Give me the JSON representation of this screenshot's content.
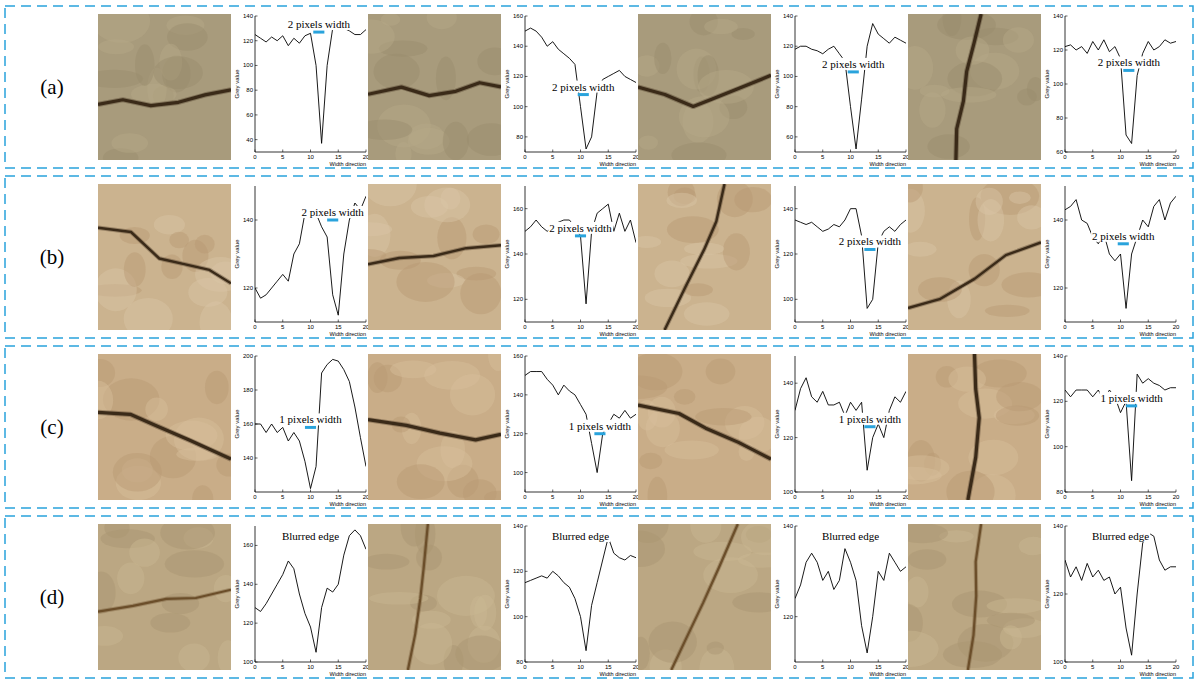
{
  "row_labels": [
    "(a)",
    "(b)",
    "(c)",
    "(d)"
  ],
  "chart_data": [
    {
      "type": "line",
      "x": [
        0,
        1,
        2,
        3,
        4,
        5,
        6,
        7,
        8,
        9,
        10,
        11,
        12,
        13,
        14,
        15,
        16,
        17,
        18,
        19,
        20
      ],
      "values": [
        125,
        122,
        119,
        123,
        120,
        124,
        116,
        122,
        118,
        124,
        126,
        100,
        37,
        100,
        130,
        133,
        130,
        128,
        125,
        125,
        129
      ],
      "xlim": [
        0,
        20
      ],
      "ylim": [
        30,
        140
      ],
      "xticks": [
        0,
        5,
        10,
        15,
        20
      ],
      "yticks": [
        40,
        60,
        80,
        100,
        120,
        140
      ],
      "x_label": "Width direction",
      "y_label": "Grey value",
      "color": "#000000",
      "annotation": {
        "text": "2 pixels width",
        "x0": 10.5,
        "x1": 12.5,
        "y": 127
      }
    },
    {
      "type": "line",
      "x": [
        0,
        1,
        2,
        3,
        4,
        5,
        6,
        7,
        8,
        9,
        10,
        11,
        12,
        13,
        14,
        15,
        16,
        17,
        18,
        19,
        20
      ],
      "values": [
        150,
        152,
        150,
        146,
        140,
        143,
        138,
        135,
        132,
        128,
        100,
        72,
        80,
        110,
        118,
        120,
        122,
        124,
        120,
        118,
        116
      ],
      "xlim": [
        0,
        20
      ],
      "ylim": [
        70,
        160
      ],
      "xticks": [
        0,
        5,
        10,
        15,
        20
      ],
      "yticks": [
        80,
        100,
        120,
        140,
        160
      ],
      "x_label": "Width direction",
      "y_label": "Grey value",
      "color": "#000000",
      "annotation": {
        "text": "2 pixels width",
        "x0": 9.5,
        "x1": 11.5,
        "y": 108
      }
    },
    {
      "type": "line",
      "x": [
        0,
        1,
        2,
        3,
        4,
        5,
        6,
        7,
        8,
        9,
        10,
        11,
        12,
        13,
        14,
        15,
        16,
        17,
        18,
        19,
        20
      ],
      "values": [
        118,
        120,
        120,
        118,
        117,
        115,
        118,
        120,
        115,
        110,
        80,
        52,
        85,
        120,
        135,
        128,
        125,
        122,
        126,
        124,
        122
      ],
      "xlim": [
        0,
        20
      ],
      "ylim": [
        50,
        140
      ],
      "xticks": [
        0,
        5,
        10,
        15,
        20
      ],
      "yticks": [
        60,
        80,
        100,
        120,
        140
      ],
      "x_label": "Width direction",
      "y_label": "Grey value",
      "color": "#000000",
      "annotation": {
        "text": "2 pixels width",
        "x0": 9.5,
        "x1": 11.5,
        "y": 103
      }
    },
    {
      "type": "line",
      "x": [
        0,
        1,
        2,
        3,
        4,
        5,
        6,
        7,
        8,
        9,
        10,
        11,
        12,
        13,
        14,
        15,
        16,
        17,
        18,
        19,
        20
      ],
      "values": [
        122,
        123,
        120,
        122,
        118,
        125,
        120,
        126,
        119,
        122,
        115,
        70,
        65,
        105,
        118,
        125,
        120,
        122,
        126,
        124,
        125
      ],
      "xlim": [
        0,
        20
      ],
      "ylim": [
        60,
        140
      ],
      "xticks": [
        0,
        5,
        10,
        15,
        20
      ],
      "yticks": [
        60,
        80,
        100,
        120,
        140
      ],
      "x_label": "Width direction",
      "y_label": "Grey value",
      "color": "#000000",
      "annotation": {
        "text": "2 pixels width",
        "x0": 10.5,
        "x1": 12.5,
        "y": 108
      }
    },
    {
      "type": "line",
      "x": [
        0,
        1,
        2,
        3,
        4,
        5,
        6,
        7,
        8,
        9,
        10,
        11,
        12,
        13,
        14,
        15,
        16,
        17,
        18,
        19,
        20
      ],
      "values": [
        120,
        117,
        118,
        120,
        122,
        124,
        122,
        130,
        133,
        142,
        143,
        142,
        138,
        135,
        118,
        112,
        130,
        140,
        145,
        143,
        147
      ],
      "xlim": [
        0,
        20
      ],
      "ylim": [
        110,
        150
      ],
      "xticks": [
        0,
        5,
        10,
        15,
        20
      ],
      "yticks": [
        120,
        140
      ],
      "x_label": "Width direction",
      "y_label": "Grey value",
      "color": "#000000",
      "annotation": {
        "text": "2 pixels width",
        "x0": 13,
        "x1": 15,
        "y": 140
      }
    },
    {
      "type": "line",
      "x": [
        0,
        1,
        2,
        3,
        4,
        5,
        6,
        7,
        8,
        9,
        10,
        11,
        12,
        13,
        14,
        15,
        16,
        17,
        18,
        19,
        20
      ],
      "values": [
        150,
        152,
        155,
        152,
        150,
        152,
        154,
        155,
        155,
        152,
        148,
        118,
        150,
        158,
        160,
        162,
        150,
        158,
        150,
        155,
        145
      ],
      "xlim": [
        0,
        20
      ],
      "ylim": [
        110,
        170
      ],
      "xticks": [
        0,
        5,
        10,
        15,
        20
      ],
      "yticks": [
        120,
        140,
        160
      ],
      "x_label": "Width direction",
      "y_label": "Grey value",
      "color": "#000000",
      "annotation": {
        "text": "2 pixels width",
        "x0": 9,
        "x1": 11,
        "y": 148
      }
    },
    {
      "type": "line",
      "x": [
        0,
        1,
        2,
        3,
        4,
        5,
        6,
        7,
        8,
        9,
        10,
        11,
        12,
        13,
        14,
        15,
        16,
        17,
        18,
        19,
        20
      ],
      "values": [
        135,
        134,
        133,
        134,
        132,
        130,
        131,
        133,
        132,
        135,
        140,
        140,
        128,
        96,
        100,
        125,
        130,
        132,
        130,
        133,
        135
      ],
      "xlim": [
        0,
        20
      ],
      "ylim": [
        90,
        150
      ],
      "xticks": [
        0,
        5,
        10,
        15,
        20
      ],
      "yticks": [
        100,
        120,
        140
      ],
      "x_label": "Width direction",
      "y_label": "Grey value",
      "color": "#000000",
      "annotation": {
        "text": "2 pixels width",
        "x0": 12.5,
        "x1": 14.5,
        "y": 122
      }
    },
    {
      "type": "line",
      "x": [
        0,
        1,
        2,
        3,
        4,
        5,
        6,
        7,
        8,
        9,
        10,
        11,
        12,
        13,
        14,
        15,
        16,
        17,
        18,
        19,
        20
      ],
      "values": [
        143,
        144,
        146,
        140,
        139,
        135,
        133,
        136,
        130,
        128,
        130,
        114,
        130,
        135,
        140,
        138,
        144,
        146,
        140,
        145,
        147
      ],
      "xlim": [
        0,
        20
      ],
      "ylim": [
        110,
        150
      ],
      "xticks": [
        0,
        5,
        10,
        15,
        20
      ],
      "yticks": [
        120,
        140
      ],
      "x_label": "Width direction",
      "y_label": "Grey value",
      "color": "#000000",
      "annotation": {
        "text": "2 pixels width",
        "x0": 9.5,
        "x1": 11.5,
        "y": 133
      }
    },
    {
      "type": "line",
      "x": [
        0,
        1,
        2,
        3,
        4,
        5,
        6,
        7,
        8,
        9,
        10,
        11,
        12,
        13,
        14,
        15,
        16,
        17,
        18,
        19,
        20
      ],
      "values": [
        160,
        160,
        155,
        160,
        155,
        158,
        150,
        155,
        150,
        138,
        122,
        135,
        190,
        195,
        198,
        197,
        192,
        185,
        170,
        152,
        135
      ],
      "xlim": [
        0,
        20
      ],
      "ylim": [
        120,
        200
      ],
      "xticks": [
        0,
        5,
        10,
        15,
        20
      ],
      "yticks": [
        140,
        160,
        180,
        200
      ],
      "x_label": "Width direction",
      "y_label": "Grey value",
      "color": "#000000",
      "annotation": {
        "text": "1 pixels width",
        "x0": 9,
        "x1": 11,
        "y": 158
      }
    },
    {
      "type": "line",
      "x": [
        0,
        1,
        2,
        3,
        4,
        5,
        6,
        7,
        8,
        9,
        10,
        11,
        12,
        13,
        14,
        15,
        16,
        17,
        18,
        19,
        20
      ],
      "values": [
        150,
        152,
        152,
        152,
        148,
        145,
        140,
        145,
        142,
        140,
        135,
        130,
        115,
        100,
        120,
        125,
        130,
        128,
        132,
        128,
        130
      ],
      "xlim": [
        0,
        20
      ],
      "ylim": [
        90,
        160
      ],
      "xticks": [
        0,
        5,
        10,
        15,
        20
      ],
      "yticks": [
        100,
        120,
        140,
        160
      ],
      "x_label": "Width direction",
      "y_label": "Grey value",
      "color": "#000000",
      "annotation": {
        "text": "1 pixels width",
        "x0": 12.5,
        "x1": 14.5,
        "y": 120
      }
    },
    {
      "type": "line",
      "x": [
        0,
        1,
        2,
        3,
        4,
        5,
        6,
        7,
        8,
        9,
        10,
        11,
        12,
        13,
        14,
        15,
        16,
        17,
        18,
        19,
        20
      ],
      "values": [
        130,
        138,
        142,
        135,
        133,
        137,
        132,
        132,
        133,
        128,
        133,
        130,
        133,
        108,
        120,
        125,
        120,
        130,
        135,
        133,
        137
      ],
      "xlim": [
        0,
        20
      ],
      "ylim": [
        100,
        150
      ],
      "xticks": [
        0,
        5,
        10,
        15,
        20
      ],
      "yticks": [
        100,
        120,
        140
      ],
      "x_label": "Width direction",
      "y_label": "Grey value",
      "color": "#000000",
      "annotation": {
        "text": "1 pixels width",
        "x0": 12.5,
        "x1": 14.5,
        "y": 124
      }
    },
    {
      "type": "line",
      "x": [
        0,
        1,
        2,
        3,
        4,
        5,
        6,
        7,
        8,
        9,
        10,
        11,
        12,
        13,
        14,
        15,
        16,
        17,
        18,
        19,
        20
      ],
      "values": [
        125,
        122,
        125,
        125,
        125,
        122,
        125,
        120,
        125,
        122,
        115,
        120,
        85,
        132,
        128,
        130,
        128,
        127,
        125,
        126,
        126
      ],
      "xlim": [
        0,
        20
      ],
      "ylim": [
        80,
        140
      ],
      "xticks": [
        0,
        5,
        10,
        15,
        20
      ],
      "yticks": [
        80,
        100,
        120,
        140
      ],
      "x_label": "Width direction",
      "y_label": "Grey value",
      "color": "#000000",
      "annotation": {
        "text": "1 pixels width",
        "x0": 11,
        "x1": 13,
        "y": 118
      }
    },
    {
      "type": "line",
      "x": [
        0,
        1,
        2,
        3,
        4,
        5,
        6,
        7,
        8,
        9,
        10,
        11,
        12,
        13,
        14,
        15,
        16,
        17,
        18,
        19,
        20
      ],
      "values": [
        128,
        126,
        130,
        135,
        140,
        145,
        152,
        148,
        135,
        125,
        118,
        105,
        128,
        138,
        136,
        140,
        155,
        165,
        168,
        165,
        158
      ],
      "xlim": [
        0,
        20
      ],
      "ylim": [
        100,
        170
      ],
      "xticks": [
        0,
        5,
        10,
        15,
        20
      ],
      "yticks": [
        100,
        120,
        140,
        160
      ],
      "x_label": "Width direction",
      "y_label": "Grey value",
      "color": "#000000",
      "annotation": {
        "text": "Blurred edge"
      }
    },
    {
      "type": "line",
      "x": [
        0,
        1,
        2,
        3,
        4,
        5,
        6,
        7,
        8,
        9,
        10,
        11,
        12,
        13,
        14,
        15,
        16,
        17,
        18,
        19,
        20
      ],
      "values": [
        115,
        116,
        117,
        118,
        117,
        120,
        118,
        115,
        113,
        108,
        100,
        85,
        105,
        115,
        125,
        135,
        128,
        126,
        125,
        127,
        126
      ],
      "xlim": [
        0,
        20
      ],
      "ylim": [
        80,
        140
      ],
      "xticks": [
        0,
        5,
        10,
        15,
        20
      ],
      "yticks": [
        80,
        100,
        120,
        140
      ],
      "x_label": "Width direction",
      "y_label": "Grey value",
      "color": "#000000",
      "annotation": {
        "text": "Blurred edge"
      }
    },
    {
      "type": "line",
      "x": [
        0,
        1,
        2,
        3,
        4,
        5,
        6,
        7,
        8,
        9,
        10,
        11,
        12,
        13,
        14,
        15,
        16,
        17,
        18,
        19,
        20
      ],
      "values": [
        124,
        127,
        132,
        134,
        132,
        128,
        130,
        126,
        128,
        135,
        132,
        128,
        118,
        112,
        120,
        130,
        128,
        134,
        132,
        130,
        131
      ],
      "xlim": [
        0,
        20
      ],
      "ylim": [
        110,
        140
      ],
      "xticks": [
        0,
        5,
        10,
        15,
        20
      ],
      "yticks": [
        120,
        140
      ],
      "x_label": "Width direction",
      "y_label": "Grey value",
      "color": "#000000",
      "annotation": {
        "text": "Blurred edge"
      }
    },
    {
      "type": "line",
      "x": [
        0,
        1,
        2,
        3,
        4,
        5,
        6,
        7,
        8,
        9,
        10,
        11,
        12,
        13,
        14,
        15,
        16,
        17,
        18,
        19,
        20
      ],
      "values": [
        130,
        125,
        128,
        124,
        129,
        125,
        127,
        124,
        125,
        120,
        122,
        110,
        102,
        120,
        135,
        138,
        137,
        130,
        127,
        128,
        128
      ],
      "xlim": [
        0,
        20
      ],
      "ylim": [
        100,
        140
      ],
      "xticks": [
        0,
        5,
        10,
        15,
        20
      ],
      "yticks": [
        100,
        120,
        140
      ],
      "x_label": "Width direction",
      "y_label": "Grey value",
      "color": "#000000",
      "annotation": {
        "text": "Blurred edge"
      }
    }
  ]
}
